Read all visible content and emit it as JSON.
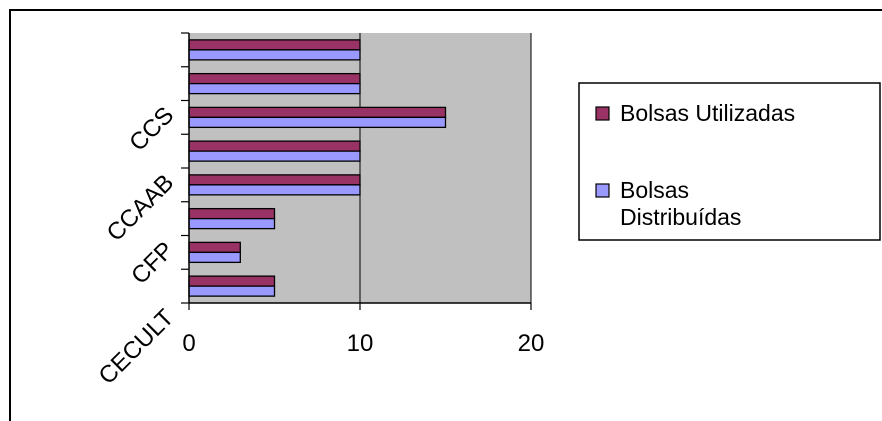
{
  "chart_data": {
    "type": "bar",
    "orientation": "horizontal",
    "categories": [
      "CECULT",
      "",
      "CFP",
      "",
      "CCAAB",
      "",
      "CCS",
      ""
    ],
    "category_labels": [
      "CECULT",
      "CFP",
      "CCAAB",
      "CCS"
    ],
    "series": [
      {
        "name": "Bolsas Distribuídas",
        "values": [
          5,
          3,
          5,
          10,
          10,
          15,
          10,
          10
        ]
      },
      {
        "name": "Bolsas Utilizadas",
        "values": [
          5,
          3,
          5,
          10,
          10,
          15,
          10,
          10
        ]
      }
    ],
    "xlim": [
      0,
      20
    ],
    "x_ticks": [
      "0",
      "10",
      "20"
    ],
    "grid": true,
    "legend_position": "right",
    "legend": [
      "Bolsas Utilizadas",
      "Bolsas Distribuídas"
    ],
    "colors": {
      "bolsas_utilizadas": "#993366",
      "bolsas_distribuidas": "#9999ff",
      "plot_background": "#c0c0c0"
    }
  }
}
